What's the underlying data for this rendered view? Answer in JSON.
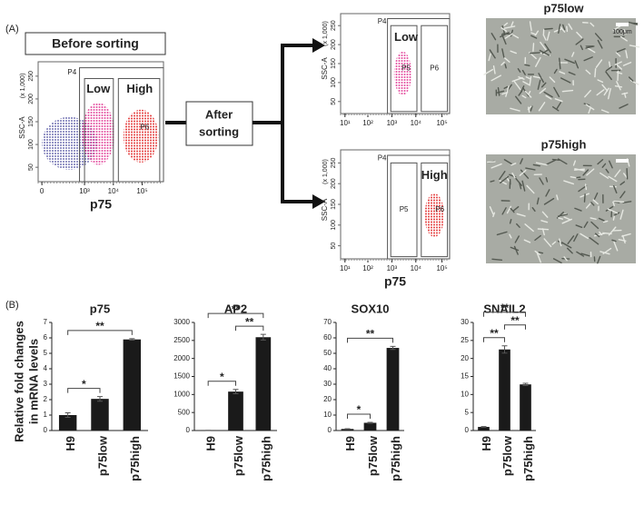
{
  "panel_a": {
    "label": "(A)",
    "before_sorting": "Before sorting",
    "after_sorting": [
      "After",
      "sorting"
    ],
    "plots": [
      {
        "y_unit": "(x 1,000)",
        "y_axis": "SSC-A",
        "yticks": [
          "250",
          "200",
          "150",
          "100",
          "50"
        ],
        "xticks": [
          "0",
          "10³",
          "10⁴",
          "10⁵"
        ],
        "gates": [
          "P4",
          "Low",
          "High",
          "P6"
        ],
        "x_axis": "p75"
      },
      {
        "y_unit": "(x 1,000)",
        "y_axis": "SSC-A",
        "yticks": [
          "250",
          "200",
          "150",
          "100",
          "50"
        ],
        "xticks": [
          "10¹",
          "10²",
          "10³",
          "10⁴",
          "10⁵"
        ],
        "gates": [
          "P4",
          "Low",
          "P5",
          "P6"
        ]
      },
      {
        "y_unit": "(x 1,000)",
        "y_axis": "SSC-A",
        "yticks": [
          "250",
          "200",
          "150",
          "100",
          "50"
        ],
        "xticks": [
          "10¹",
          "10²",
          "10³",
          "10⁴",
          "10⁵"
        ],
        "gates": [
          "P4",
          "P5",
          "High",
          "P6"
        ],
        "x_axis": "p75"
      }
    ],
    "images": [
      {
        "title": "p75low",
        "scale": "100μm"
      },
      {
        "title": "p75high"
      }
    ]
  },
  "panel_b": {
    "label": "(B)",
    "y_label": [
      "Relative fold changes",
      "in mRNA levels"
    ]
  },
  "chart_data": [
    {
      "type": "bar",
      "title": "p75",
      "categories": [
        "H9",
        "p75low",
        "p75high"
      ],
      "values": [
        1.0,
        2.05,
        5.9
      ],
      "errors": [
        0.15,
        0.15,
        0.05
      ],
      "color": "#1a1a1a",
      "ylim": [
        0,
        7
      ],
      "yticks": [
        0,
        1,
        2,
        3,
        4,
        5,
        6,
        7
      ],
      "annotations": [
        {
          "text": "*",
          "between": [
            "H9",
            "p75low"
          ]
        },
        {
          "text": "**",
          "between": [
            "H9",
            "p75high"
          ]
        }
      ]
    },
    {
      "type": "bar",
      "title": "AP2",
      "categories": [
        "H9",
        "p75low",
        "p75high"
      ],
      "values": [
        5,
        1080,
        2590
      ],
      "errors": [
        0,
        60,
        80
      ],
      "color": "#1a1a1a",
      "ylim": [
        0,
        3000
      ],
      "yticks": [
        0,
        500,
        1000,
        1500,
        2000,
        2500,
        3000
      ],
      "annotations": [
        {
          "text": "*",
          "between": [
            "H9",
            "p75low"
          ]
        },
        {
          "text": "**",
          "between": [
            "p75low",
            "p75high"
          ]
        },
        {
          "text": "**",
          "between": [
            "H9",
            "p75high"
          ]
        }
      ]
    },
    {
      "type": "bar",
      "title": "SOX10",
      "categories": [
        "H9",
        "p75low",
        "p75high"
      ],
      "values": [
        1,
        5,
        53.5
      ],
      "errors": [
        0.2,
        0.3,
        1
      ],
      "color": "#1a1a1a",
      "ylim": [
        0,
        70
      ],
      "yticks": [
        0,
        10,
        20,
        30,
        40,
        50,
        60,
        70
      ],
      "annotations": [
        {
          "text": "*",
          "between": [
            "H9",
            "p75low"
          ]
        },
        {
          "text": "**",
          "between": [
            "H9",
            "p75high"
          ]
        }
      ]
    },
    {
      "type": "bar",
      "title": "SNAIL2",
      "categories": [
        "H9",
        "p75low",
        "p75high"
      ],
      "values": [
        1,
        22.5,
        12.8
      ],
      "errors": [
        0.1,
        1,
        0.3
      ],
      "color": "#1a1a1a",
      "ylim": [
        0,
        30
      ],
      "yticks": [
        0,
        5,
        10,
        15,
        20,
        25,
        30
      ],
      "annotations": [
        {
          "text": "**",
          "between": [
            "H9",
            "p75low"
          ]
        },
        {
          "text": "**",
          "between": [
            "p75low",
            "p75high"
          ]
        },
        {
          "text": "**",
          "between": [
            "H9",
            "p75high"
          ]
        }
      ]
    }
  ]
}
